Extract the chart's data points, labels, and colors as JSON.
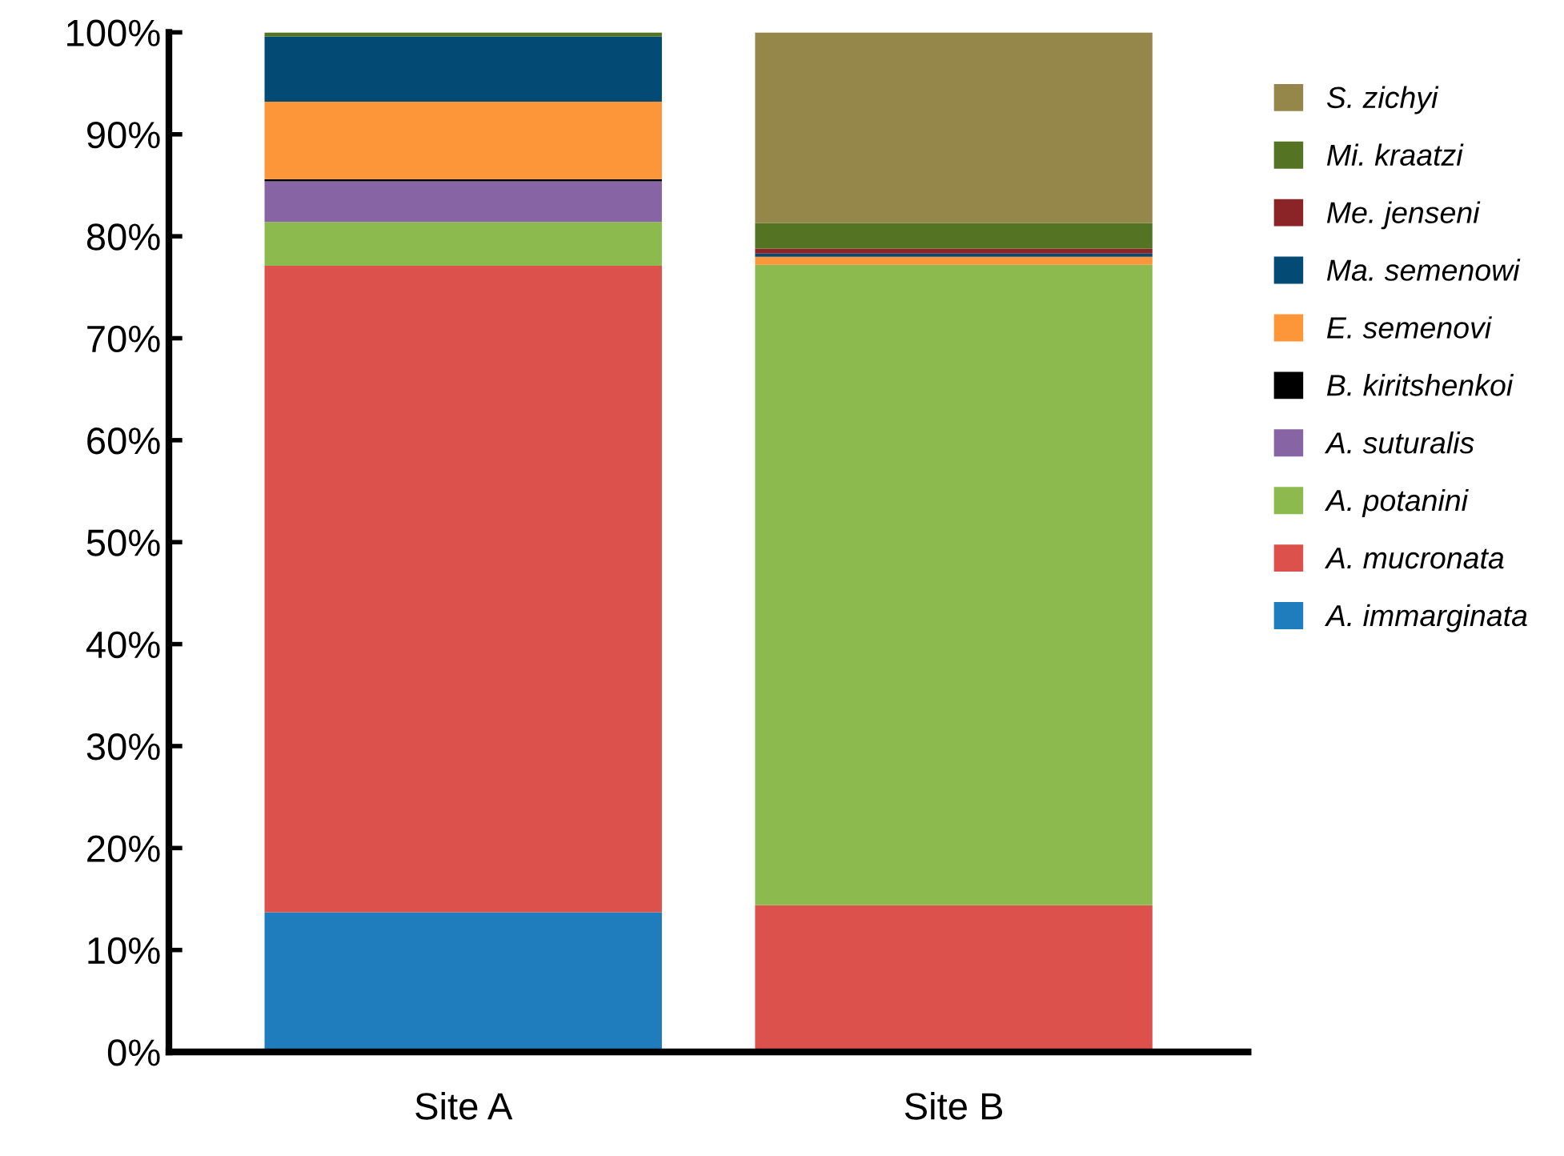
{
  "chart_data": {
    "type": "bar",
    "stacked": true,
    "categories": [
      "Site A",
      "Site B"
    ],
    "series": [
      {
        "name": "A. immarginata",
        "color": "#1f7dbd",
        "values": [
          13.7,
          0
        ]
      },
      {
        "name": "A. mucronata",
        "color": "#dc514c",
        "values": [
          63.4,
          14.4
        ]
      },
      {
        "name": "A. potanini",
        "color": "#8dba4e",
        "values": [
          4.3,
          62.8
        ]
      },
      {
        "name": "A. suturalis",
        "color": "#8764a3",
        "values": [
          4.0,
          0
        ]
      },
      {
        "name": "B. kiritshenkoi",
        "color": "#000000",
        "values": [
          0.2,
          0
        ]
      },
      {
        "name": "E. semenovi",
        "color": "#fd9638",
        "values": [
          7.6,
          0.8
        ]
      },
      {
        "name": "Ma. semenowi",
        "color": "#034a75",
        "values": [
          6.4,
          0.3
        ]
      },
      {
        "name": "Me. jenseni",
        "color": "#8b2427",
        "values": [
          0,
          0.5
        ]
      },
      {
        "name": "Mi. kraatzi",
        "color": "#547423",
        "values": [
          0.4,
          2.5
        ]
      },
      {
        "name": "S. zichyi",
        "color": "#95864a",
        "values": [
          0,
          18.7
        ]
      }
    ],
    "ylim": [
      0,
      100
    ],
    "yticks": [
      {
        "value": 0,
        "label": "0%"
      },
      {
        "value": 10,
        "label": "10%"
      },
      {
        "value": 20,
        "label": "20%"
      },
      {
        "value": 30,
        "label": "30%"
      },
      {
        "value": 40,
        "label": "40%"
      },
      {
        "value": 50,
        "label": "50%"
      },
      {
        "value": 60,
        "label": "60%"
      },
      {
        "value": 70,
        "label": "70%"
      },
      {
        "value": 80,
        "label": "80%"
      },
      {
        "value": 90,
        "label": "90%"
      },
      {
        "value": 100,
        "label": "100%"
      }
    ],
    "legend": "right",
    "grid": false
  }
}
